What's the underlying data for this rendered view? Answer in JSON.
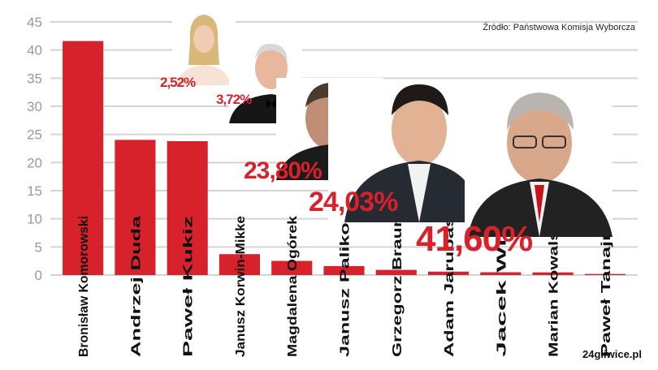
{
  "source_text": "Źródło: Państwowa Komisja Wyborcza",
  "brand_text": "24gliwice.pl",
  "colors": {
    "bar": "#d8222b",
    "grid": "#d4d4d4",
    "accent": "#d8222b",
    "tick": "#999999"
  },
  "chart_data": {
    "type": "bar",
    "categories": [
      "Bronisław Komorowski",
      "Andrzej Duda",
      "Paweł Kukiz",
      "Janusz Korwin-Mikke",
      "Magdalena Ogórek",
      "Janusz Palikot",
      "Grzegorz Braun",
      "Adam Jarubas",
      "Jacek Wilk",
      "Marian Kowalski",
      "Paweł Tanajno"
    ],
    "values": [
      41.6,
      24.03,
      23.8,
      3.72,
      2.52,
      1.6,
      0.92,
      0.61,
      0.5,
      0.48,
      0.2
    ],
    "ylim": [
      0,
      45
    ],
    "yticks": [
      0,
      5,
      10,
      15,
      20,
      25,
      30,
      35,
      40,
      45
    ],
    "grid": true,
    "annotations": [
      "41,60%",
      "24,03%",
      "23,80%",
      "3,72%",
      "2,52%"
    ]
  }
}
